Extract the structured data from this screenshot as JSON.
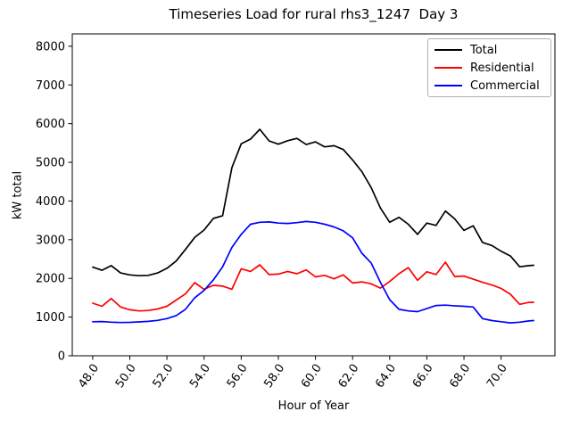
{
  "chart_data": {
    "type": "line",
    "title": "Timeseries Load for rural rhs3_1247  Day 3",
    "xlabel": "Hour of Year",
    "ylabel": "kW total",
    "xlim": [
      46.9,
      72.9
    ],
    "ylim": [
      0,
      8320
    ],
    "grid": false,
    "legend_position": "upper right",
    "xticks": [
      48,
      50,
      52,
      54,
      56,
      58,
      60,
      62,
      64,
      66,
      68,
      70
    ],
    "xtick_labels": [
      "48.0",
      "50.0",
      "52.0",
      "54.0",
      "56.0",
      "58.0",
      "60.0",
      "62.0",
      "64.0",
      "66.0",
      "68.0",
      "70.0"
    ],
    "yticks": [
      0,
      1000,
      2000,
      3000,
      4000,
      5000,
      6000,
      7000,
      8000
    ],
    "ytick_labels": [
      "0",
      "1000",
      "2000",
      "3000",
      "4000",
      "5000",
      "6000",
      "7000",
      "8000"
    ],
    "x": [
      48.0,
      48.5,
      49.0,
      49.5,
      50.0,
      50.5,
      51.0,
      51.5,
      52.0,
      52.5,
      53.0,
      53.5,
      54.0,
      54.5,
      55.0,
      55.5,
      56.0,
      56.5,
      57.0,
      57.5,
      58.0,
      58.5,
      59.0,
      59.5,
      60.0,
      60.5,
      61.0,
      61.5,
      62.0,
      62.5,
      63.0,
      63.5,
      64.0,
      64.5,
      65.0,
      65.5,
      66.0,
      66.5,
      67.0,
      67.5,
      68.0,
      68.5,
      69.0,
      69.5,
      70.0,
      70.5,
      71.0,
      71.5,
      71.75
    ],
    "series": [
      {
        "name": "Total",
        "color": "#000000",
        "values": [
          2290,
          2210,
          2330,
          2140,
          2090,
          2070,
          2080,
          2140,
          2260,
          2450,
          2750,
          3060,
          3250,
          3550,
          3620,
          4860,
          5480,
          5600,
          5855,
          5555,
          5470,
          5560,
          5620,
          5460,
          5530,
          5400,
          5430,
          5330,
          5060,
          4760,
          4350,
          3820,
          3450,
          3580,
          3400,
          3140,
          3430,
          3370,
          3740,
          3540,
          3240,
          3360,
          2930,
          2850,
          2700,
          2580,
          2300,
          2330,
          2340
        ]
      },
      {
        "name": "Residential",
        "color": "#ff0000",
        "values": [
          1360,
          1280,
          1480,
          1260,
          1190,
          1160,
          1170,
          1210,
          1280,
          1440,
          1600,
          1890,
          1720,
          1820,
          1800,
          1720,
          2250,
          2180,
          2350,
          2100,
          2110,
          2180,
          2120,
          2220,
          2040,
          2080,
          1990,
          2090,
          1880,
          1910,
          1860,
          1750,
          1920,
          2120,
          2280,
          1950,
          2170,
          2100,
          2420,
          2050,
          2060,
          1980,
          1900,
          1830,
          1740,
          1590,
          1330,
          1380,
          1380
        ]
      },
      {
        "name": "Commercial",
        "color": "#0000ff",
        "values": [
          880,
          885,
          870,
          860,
          865,
          875,
          890,
          915,
          960,
          1040,
          1200,
          1500,
          1690,
          1960,
          2300,
          2800,
          3140,
          3400,
          3450,
          3460,
          3430,
          3420,
          3440,
          3470,
          3450,
          3400,
          3330,
          3230,
          3050,
          2650,
          2400,
          1900,
          1450,
          1200,
          1160,
          1140,
          1220,
          1300,
          1310,
          1290,
          1280,
          1260,
          960,
          910,
          880,
          850,
          870,
          900,
          910
        ]
      }
    ]
  }
}
